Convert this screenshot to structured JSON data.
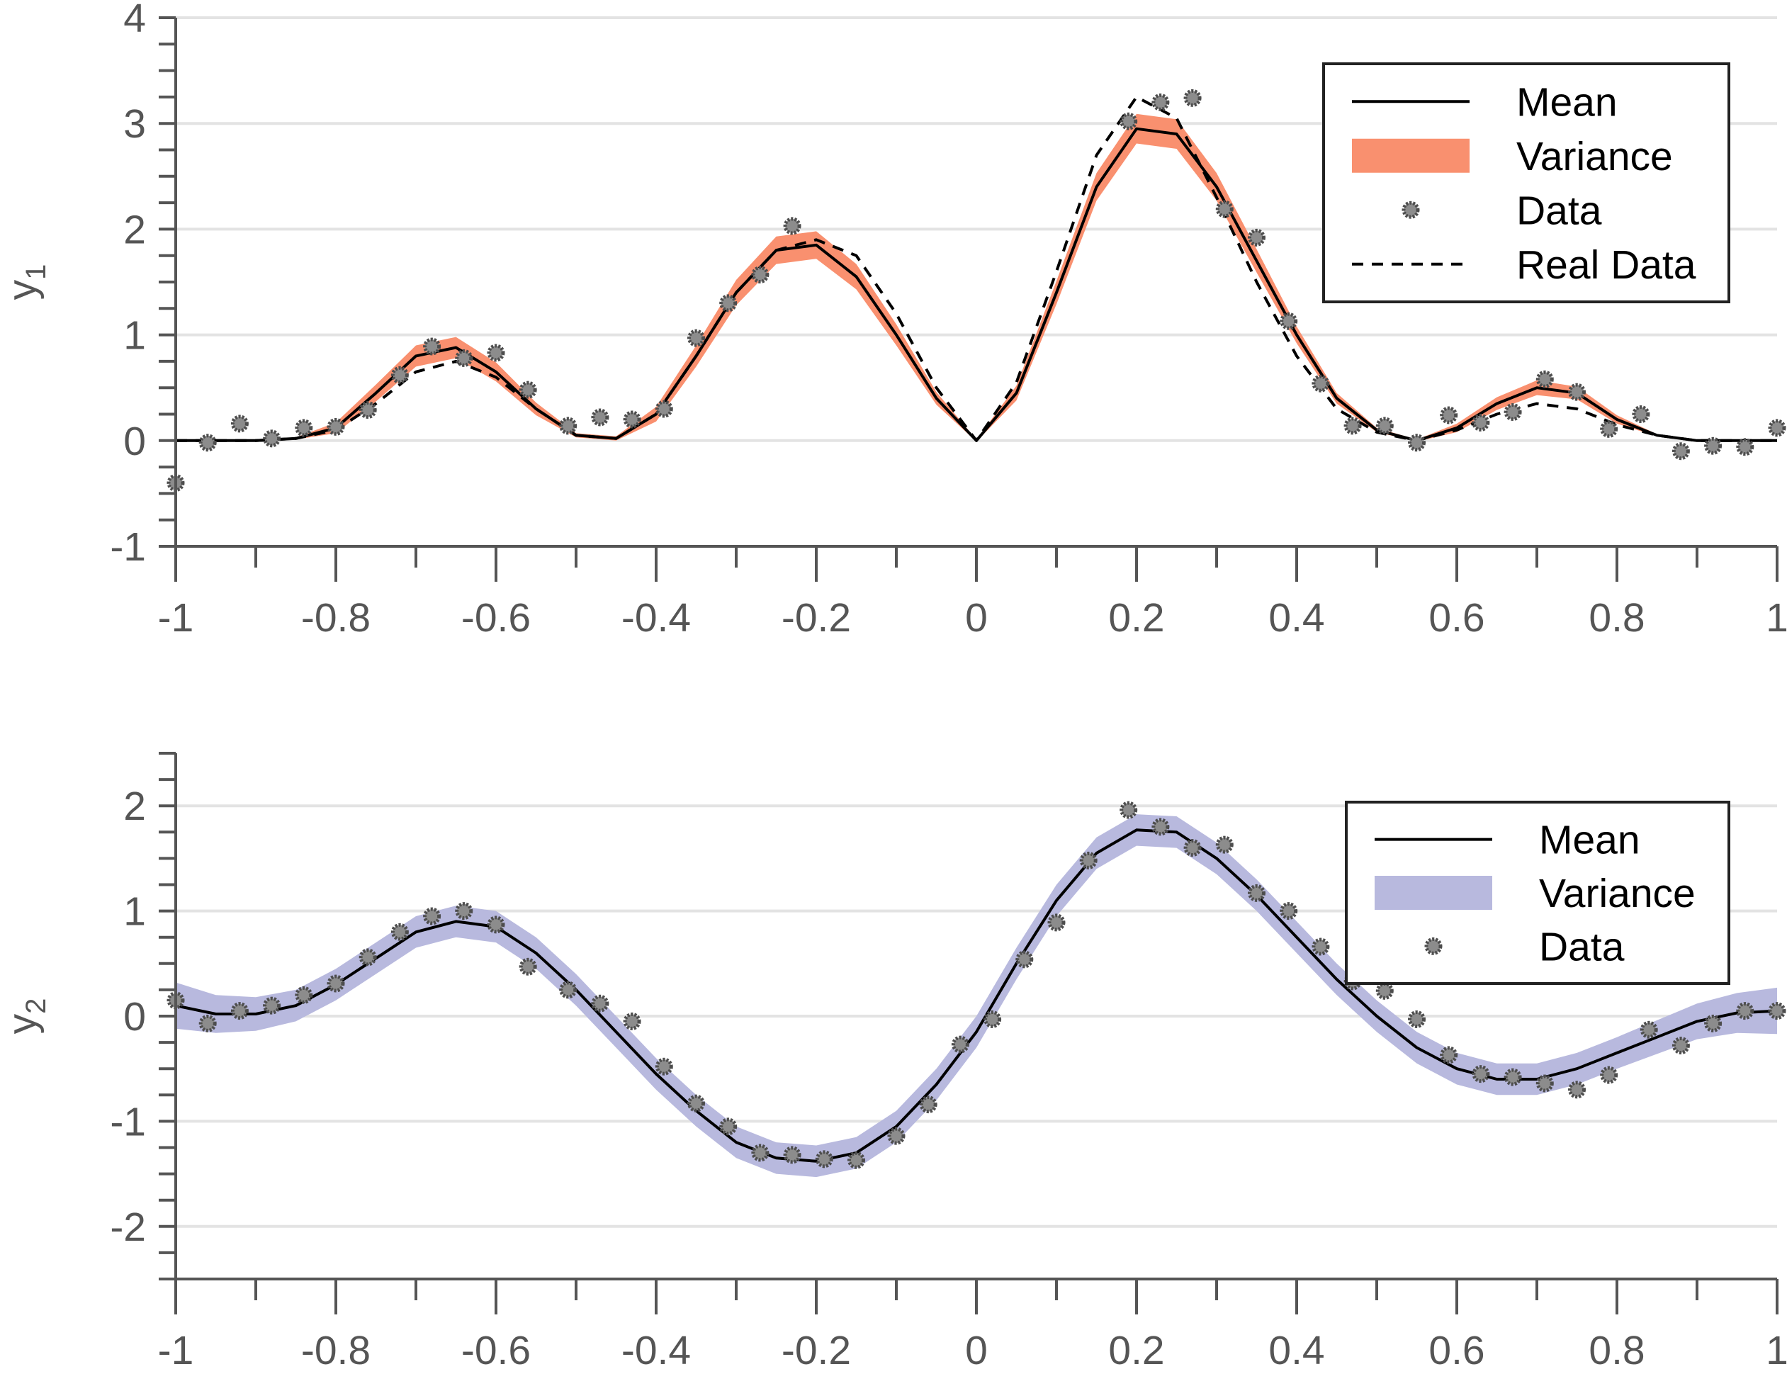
{
  "chart_data": [
    {
      "type": "line",
      "ylabel": "y",
      "ylabel_subscript": "1",
      "xlim": [
        -1,
        1
      ],
      "ylim": [
        -1,
        4
      ],
      "x_ticks": [
        -1,
        -0.8,
        -0.6,
        -0.4,
        -0.2,
        0,
        0.2,
        0.4,
        0.6,
        0.8,
        1
      ],
      "x_tick_labels": [
        "-1",
        "-0.8",
        "-0.6",
        "-0.4",
        "-0.2",
        "0",
        "0.2",
        "0.4",
        "0.6",
        "0.8",
        "1"
      ],
      "y_ticks": [
        -1,
        0,
        1,
        2,
        3,
        4
      ],
      "y_tick_labels": [
        "-1",
        "0",
        "1",
        "2",
        "3",
        "4"
      ],
      "grid": "horizontal",
      "legend_position": "top-right",
      "legend": [
        "Mean",
        "Variance",
        "Data",
        "Real Data"
      ],
      "colors": {
        "mean": "#000000",
        "variance": "#f9906f",
        "data_fill": "#8c8c8c",
        "data_edge": "#4d4d4d",
        "real": "#000000"
      },
      "x": [
        -1,
        -0.95,
        -0.9,
        -0.85,
        -0.8,
        -0.75,
        -0.7,
        -0.65,
        -0.6,
        -0.55,
        -0.5,
        -0.45,
        -0.4,
        -0.35,
        -0.3,
        -0.25,
        -0.2,
        -0.15,
        -0.1,
        -0.05,
        0,
        0.05,
        0.1,
        0.15,
        0.2,
        0.25,
        0.3,
        0.35,
        0.4,
        0.45,
        0.5,
        0.55,
        0.6,
        0.65,
        0.7,
        0.75,
        0.8,
        0.85,
        0.9,
        0.95,
        1
      ],
      "series": [
        {
          "name": "Mean",
          "style": "solid",
          "values": [
            0.0,
            0.0,
            0.0,
            0.02,
            0.12,
            0.45,
            0.8,
            0.88,
            0.65,
            0.3,
            0.05,
            0.02,
            0.25,
            0.8,
            1.4,
            1.8,
            1.85,
            1.55,
            1.0,
            0.4,
            0.0,
            0.45,
            1.4,
            2.4,
            2.95,
            2.9,
            2.4,
            1.7,
            1.0,
            0.4,
            0.1,
            0.0,
            0.12,
            0.35,
            0.5,
            0.45,
            0.2,
            0.05,
            0.0,
            0.0,
            0.0
          ]
        },
        {
          "name": "Real Data",
          "style": "dashed",
          "values": [
            0.0,
            0.0,
            0.0,
            0.02,
            0.1,
            0.35,
            0.65,
            0.75,
            0.6,
            0.3,
            0.05,
            0.02,
            0.25,
            0.8,
            1.4,
            1.8,
            1.9,
            1.75,
            1.2,
            0.5,
            0.0,
            0.55,
            1.6,
            2.7,
            3.25,
            3.05,
            2.3,
            1.5,
            0.8,
            0.3,
            0.08,
            0.0,
            0.1,
            0.25,
            0.35,
            0.3,
            0.15,
            0.05,
            0.0,
            0.0,
            0.0
          ]
        }
      ],
      "variance": {
        "name": "Variance",
        "half_width": [
          0.0,
          0.0,
          0.0,
          0.01,
          0.05,
          0.08,
          0.1,
          0.1,
          0.09,
          0.06,
          0.02,
          0.02,
          0.07,
          0.1,
          0.12,
          0.13,
          0.13,
          0.12,
          0.1,
          0.06,
          0.01,
          0.07,
          0.11,
          0.13,
          0.14,
          0.14,
          0.13,
          0.11,
          0.08,
          0.05,
          0.02,
          0.01,
          0.04,
          0.06,
          0.07,
          0.06,
          0.04,
          0.01,
          0.0,
          0.0,
          0.0
        ]
      },
      "data_points": [
        [
          -1,
          -0.4
        ],
        [
          -0.96,
          -0.02
        ],
        [
          -0.92,
          0.16
        ],
        [
          -0.88,
          0.02
        ],
        [
          -0.84,
          0.12
        ],
        [
          -0.8,
          0.13
        ],
        [
          -0.76,
          0.29
        ],
        [
          -0.72,
          0.62
        ],
        [
          -0.68,
          0.89
        ],
        [
          -0.64,
          0.78
        ],
        [
          -0.6,
          0.83
        ],
        [
          -0.56,
          0.48
        ],
        [
          -0.51,
          0.14
        ],
        [
          -0.47,
          0.22
        ],
        [
          -0.43,
          0.2
        ],
        [
          -0.39,
          0.3
        ],
        [
          -0.35,
          0.97
        ],
        [
          -0.31,
          1.3
        ],
        [
          -0.27,
          1.57
        ],
        [
          -0.23,
          2.03
        ],
        [
          0.19,
          3.02
        ],
        [
          0.23,
          3.2
        ],
        [
          0.27,
          3.24
        ],
        [
          0.31,
          2.19
        ],
        [
          0.35,
          1.92
        ],
        [
          0.39,
          1.13
        ],
        [
          0.43,
          0.54
        ],
        [
          0.47,
          0.14
        ],
        [
          0.51,
          0.14
        ],
        [
          0.55,
          -0.02
        ],
        [
          0.59,
          0.24
        ],
        [
          0.63,
          0.17
        ],
        [
          0.67,
          0.27
        ],
        [
          0.71,
          0.58
        ],
        [
          0.75,
          0.46
        ],
        [
          0.79,
          0.11
        ],
        [
          0.83,
          0.25
        ],
        [
          0.88,
          -0.1
        ],
        [
          0.92,
          -0.05
        ],
        [
          0.96,
          -0.06
        ],
        [
          1,
          0.12
        ]
      ]
    },
    {
      "type": "line",
      "ylabel": "y",
      "ylabel_subscript": "2",
      "xlim": [
        -1,
        1
      ],
      "ylim": [
        -2.5,
        2.5
      ],
      "x_ticks": [
        -1,
        -0.8,
        -0.6,
        -0.4,
        -0.2,
        0,
        0.2,
        0.4,
        0.6,
        0.8,
        1
      ],
      "x_tick_labels": [
        "-1",
        "-0.8",
        "-0.6",
        "-0.4",
        "-0.2",
        "0",
        "0.2",
        "0.4",
        "0.6",
        "0.8",
        "1"
      ],
      "y_ticks": [
        -2,
        -1,
        0,
        1,
        2
      ],
      "y_tick_labels": [
        "-2",
        "-1",
        "0",
        "1",
        "2"
      ],
      "grid": "horizontal",
      "legend_position": "top-right",
      "legend": [
        "Mean",
        "Variance",
        "Data"
      ],
      "colors": {
        "mean": "#000000",
        "variance": "#b8b9de",
        "data_fill": "#8c8c8c",
        "data_edge": "#4d4d4d"
      },
      "x": [
        -1,
        -0.95,
        -0.9,
        -0.85,
        -0.8,
        -0.75,
        -0.7,
        -0.65,
        -0.6,
        -0.55,
        -0.5,
        -0.45,
        -0.4,
        -0.35,
        -0.3,
        -0.25,
        -0.2,
        -0.15,
        -0.1,
        -0.05,
        0,
        0.05,
        0.1,
        0.15,
        0.2,
        0.25,
        0.3,
        0.35,
        0.4,
        0.45,
        0.5,
        0.55,
        0.6,
        0.65,
        0.7,
        0.75,
        0.8,
        0.85,
        0.9,
        0.95,
        1
      ],
      "series": [
        {
          "name": "Mean",
          "style": "solid",
          "values": [
            0.1,
            0.02,
            0.02,
            0.1,
            0.3,
            0.55,
            0.8,
            0.9,
            0.85,
            0.6,
            0.25,
            -0.15,
            -0.55,
            -0.9,
            -1.2,
            -1.35,
            -1.38,
            -1.3,
            -1.05,
            -0.65,
            -0.15,
            0.5,
            1.1,
            1.55,
            1.77,
            1.75,
            1.5,
            1.15,
            0.75,
            0.35,
            0.0,
            -0.3,
            -0.5,
            -0.6,
            -0.6,
            -0.5,
            -0.35,
            -0.2,
            -0.05,
            0.03,
            0.05
          ]
        }
      ],
      "variance": {
        "name": "Variance",
        "half_width": [
          0.22,
          0.18,
          0.16,
          0.15,
          0.15,
          0.15,
          0.15,
          0.15,
          0.15,
          0.15,
          0.15,
          0.15,
          0.15,
          0.15,
          0.15,
          0.15,
          0.15,
          0.15,
          0.15,
          0.15,
          0.15,
          0.15,
          0.15,
          0.15,
          0.15,
          0.15,
          0.15,
          0.15,
          0.15,
          0.15,
          0.15,
          0.15,
          0.15,
          0.15,
          0.15,
          0.15,
          0.15,
          0.16,
          0.17,
          0.19,
          0.22
        ]
      },
      "data_points": [
        [
          -1,
          0.15
        ],
        [
          -0.96,
          -0.07
        ],
        [
          -0.92,
          0.05
        ],
        [
          -0.88,
          0.1
        ],
        [
          -0.84,
          0.2
        ],
        [
          -0.8,
          0.31
        ],
        [
          -0.76,
          0.56
        ],
        [
          -0.72,
          0.8
        ],
        [
          -0.68,
          0.95
        ],
        [
          -0.64,
          1.0
        ],
        [
          -0.6,
          0.87
        ],
        [
          -0.56,
          0.47
        ],
        [
          -0.51,
          0.25
        ],
        [
          -0.47,
          0.12
        ],
        [
          -0.43,
          -0.05
        ],
        [
          -0.39,
          -0.48
        ],
        [
          -0.35,
          -0.83
        ],
        [
          -0.31,
          -1.05
        ],
        [
          -0.27,
          -1.3
        ],
        [
          -0.23,
          -1.32
        ],
        [
          -0.19,
          -1.36
        ],
        [
          -0.15,
          -1.37
        ],
        [
          -0.1,
          -1.14
        ],
        [
          -0.06,
          -0.84
        ],
        [
          -0.02,
          -0.27
        ],
        [
          0.02,
          -0.03
        ],
        [
          0.06,
          0.54
        ],
        [
          0.1,
          0.89
        ],
        [
          0.14,
          1.48
        ],
        [
          0.19,
          1.96
        ],
        [
          0.23,
          1.8
        ],
        [
          0.27,
          1.6
        ],
        [
          0.31,
          1.63
        ],
        [
          0.35,
          1.17
        ],
        [
          0.39,
          1.0
        ],
        [
          0.43,
          0.66
        ],
        [
          0.47,
          0.33
        ],
        [
          0.51,
          0.24
        ],
        [
          0.55,
          -0.03
        ],
        [
          0.59,
          -0.37
        ],
        [
          0.63,
          -0.55
        ],
        [
          0.67,
          -0.58
        ],
        [
          0.71,
          -0.64
        ],
        [
          0.75,
          -0.7
        ],
        [
          0.79,
          -0.56
        ],
        [
          0.84,
          -0.13
        ],
        [
          0.88,
          -0.28
        ],
        [
          0.92,
          -0.07
        ],
        [
          0.96,
          0.05
        ],
        [
          1,
          0.05
        ]
      ]
    }
  ]
}
